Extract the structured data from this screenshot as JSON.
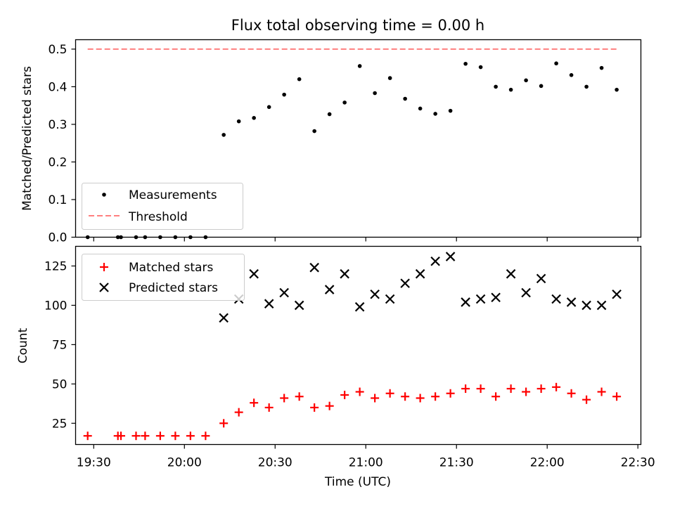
{
  "figure": {
    "title": "Flux total observing time = 0.00 h",
    "xlabel": "Time (UTC)"
  },
  "chart_data": [
    {
      "type": "scatter",
      "ylabel": "Matched/Predicted stars",
      "ylim": [
        0,
        0.525
      ],
      "yticks": [
        0.0,
        0.1,
        0.2,
        0.3,
        0.4,
        0.5
      ],
      "ytick_labels": [
        "0.0",
        "0.1",
        "0.2",
        "0.3",
        "0.4",
        "0.5"
      ],
      "xlim": [
        "19:24",
        "22:31"
      ],
      "xticks": [
        "19:30",
        "20:00",
        "20:30",
        "21:00",
        "21:30",
        "22:00",
        "22:30"
      ],
      "xtick_labels_visible": false,
      "grid": false,
      "legend": {
        "placement": "lower-left"
      },
      "series": [
        {
          "name": "Measurements",
          "kind": "points",
          "marker": "dot",
          "color": "#000000",
          "x": [
            "19:28",
            "19:38",
            "19:39",
            "19:44",
            "19:47",
            "19:52",
            "19:57",
            "20:02",
            "20:07",
            "20:13",
            "20:18",
            "20:23",
            "20:28",
            "20:33",
            "20:38",
            "20:43",
            "20:48",
            "20:53",
            "20:58",
            "21:03",
            "21:08",
            "21:13",
            "21:18",
            "21:23",
            "21:28",
            "21:33",
            "21:38",
            "21:43",
            "21:48",
            "21:53",
            "21:58",
            "22:03",
            "22:08",
            "22:13",
            "22:18",
            "22:23"
          ],
          "y": [
            0.0,
            0.0,
            0.0,
            0.0,
            0.0,
            0.0,
            0.0,
            0.0,
            0.0,
            0.272,
            0.308,
            0.317,
            0.346,
            0.379,
            0.42,
            0.282,
            0.327,
            0.358,
            0.455,
            0.383,
            0.423,
            0.368,
            0.342,
            0.328,
            0.336,
            0.461,
            0.452,
            0.4,
            0.392,
            0.417,
            0.402,
            0.462,
            0.431,
            0.4,
            0.45,
            0.392
          ]
        },
        {
          "name": "Threshold",
          "kind": "line",
          "style": "dashed",
          "color": "#ff7f7f",
          "x": [
            "19:28",
            "22:23"
          ],
          "y": [
            0.5,
            0.5
          ]
        }
      ]
    },
    {
      "type": "scatter",
      "ylabel": "Count",
      "ylim": [
        11.5,
        137.5
      ],
      "yticks": [
        25,
        50,
        75,
        100,
        125
      ],
      "ytick_labels": [
        "25",
        "50",
        "75",
        "100",
        "125"
      ],
      "xlim": [
        "19:24",
        "22:31"
      ],
      "xticks": [
        "19:30",
        "20:00",
        "20:30",
        "21:00",
        "21:30",
        "22:00",
        "22:30"
      ],
      "xtick_labels": [
        "19:30",
        "20:00",
        "20:30",
        "21:00",
        "21:30",
        "22:00",
        "22:30"
      ],
      "grid": false,
      "legend": {
        "placement": "upper-left"
      },
      "series": [
        {
          "name": "Matched stars",
          "kind": "points",
          "marker": "plus",
          "color": "#ff0000",
          "x": [
            "19:28",
            "19:38",
            "19:39",
            "19:44",
            "19:47",
            "19:52",
            "19:57",
            "20:02",
            "20:07",
            "20:13",
            "20:18",
            "20:23",
            "20:28",
            "20:33",
            "20:38",
            "20:43",
            "20:48",
            "20:53",
            "20:58",
            "21:03",
            "21:08",
            "21:13",
            "21:18",
            "21:23",
            "21:28",
            "21:33",
            "21:38",
            "21:43",
            "21:48",
            "21:53",
            "21:58",
            "22:03",
            "22:08",
            "22:13",
            "22:18",
            "22:23"
          ],
          "y": [
            17,
            17,
            17,
            17,
            17,
            17,
            17,
            17,
            17,
            25,
            32,
            38,
            35,
            41,
            42,
            35,
            36,
            43,
            45,
            41,
            44,
            42,
            41,
            42,
            44,
            47,
            47,
            42,
            47,
            45,
            47,
            48,
            44,
            40,
            45,
            42
          ]
        },
        {
          "name": "Predicted stars",
          "kind": "points",
          "marker": "x",
          "color": "#000000",
          "x": [
            "20:13",
            "20:18",
            "20:23",
            "20:28",
            "20:33",
            "20:38",
            "20:43",
            "20:48",
            "20:53",
            "20:58",
            "21:03",
            "21:08",
            "21:13",
            "21:18",
            "21:23",
            "21:28",
            "21:33",
            "21:38",
            "21:43",
            "21:48",
            "21:53",
            "21:58",
            "22:03",
            "22:08",
            "22:13",
            "22:18",
            "22:23"
          ],
          "y": [
            92,
            104,
            120,
            101,
            108,
            100,
            124,
            110,
            120,
            99,
            107,
            104,
            114,
            120,
            128,
            131,
            102,
            104,
            105,
            120,
            108,
            117,
            104,
            102,
            100,
            100,
            107
          ]
        }
      ]
    }
  ]
}
